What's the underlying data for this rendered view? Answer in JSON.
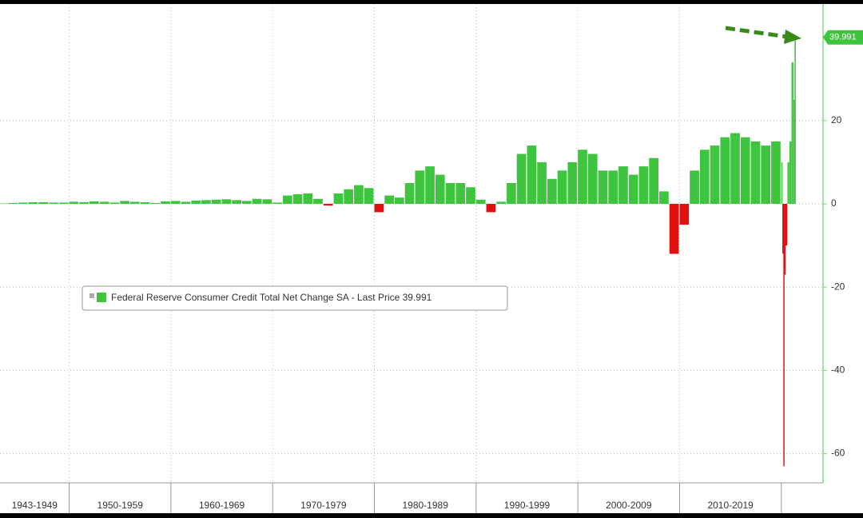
{
  "chart_data": {
    "type": "bar",
    "series_name": "Federal Reserve Consumer Credit Total Net Change SA - Last Price 39.991",
    "x": [
      1943,
      1944,
      1945,
      1946,
      1947,
      1948,
      1949,
      1950,
      1951,
      1952,
      1953,
      1954,
      1955,
      1956,
      1957,
      1958,
      1959,
      1960,
      1961,
      1962,
      1963,
      1964,
      1965,
      1966,
      1967,
      1968,
      1969,
      1970,
      1971,
      1972,
      1973,
      1974,
      1975,
      1976,
      1977,
      1978,
      1979,
      1980,
      1981,
      1982,
      1983,
      1984,
      1985,
      1986,
      1987,
      1988,
      1989,
      1990,
      1991,
      1992,
      1993,
      1994,
      1995,
      1996,
      1997,
      1998,
      1999,
      2000,
      2001,
      2002,
      2003,
      2004,
      2005,
      2006,
      2007,
      2008,
      2009,
      2010,
      2011,
      2012,
      2013,
      2014,
      2015,
      2016,
      2017,
      2018,
      2019,
      2020.0,
      2020.1,
      2020.2,
      2020.3,
      2020.4,
      2020.6,
      2020.8,
      2021.0,
      2021.2,
      2021.3
    ],
    "values": [
      0.1,
      0.2,
      0.3,
      0.4,
      0.4,
      0.3,
      0.3,
      0.5,
      0.4,
      0.6,
      0.5,
      0.3,
      0.7,
      0.5,
      0.4,
      0.2,
      0.6,
      0.7,
      0.5,
      0.8,
      0.9,
      1.0,
      1.1,
      0.9,
      0.7,
      1.2,
      1.1,
      0.3,
      2.0,
      2.3,
      2.5,
      1.2,
      -0.4,
      2.5,
      3.5,
      4.5,
      3.8,
      -2.0,
      2.0,
      1.5,
      5.0,
      8.0,
      9.0,
      7.0,
      5.0,
      5.0,
      4.0,
      1.0,
      -2.0,
      0.5,
      5.0,
      12.0,
      14.0,
      10.0,
      6.0,
      8.0,
      10.0,
      13.0,
      12.0,
      8.0,
      8.0,
      9.0,
      7.0,
      9.0,
      11.0,
      3.0,
      -12.0,
      -5.0,
      8.0,
      13.0,
      14.0,
      16.0,
      17.0,
      16.0,
      15.0,
      14.0,
      15.0,
      10.0,
      -12.0,
      -63.0,
      -17.0,
      -10.0,
      10.0,
      15.0,
      34.0,
      25.0,
      39.991
    ],
    "colors": {
      "positive": "#3ec43e",
      "negative": "#e01010"
    },
    "xlim": [
      1943.2,
      2024.1
    ],
    "ylim": [
      -67,
      48
    ],
    "yticks": [
      20,
      0,
      -20,
      -40,
      -60
    ],
    "x_groups": [
      {
        "label": "1943-1949",
        "start": 1943,
        "end": 1950
      },
      {
        "label": "1950-1959",
        "start": 1950,
        "end": 1960
      },
      {
        "label": "1960-1969",
        "start": 1960,
        "end": 1970
      },
      {
        "label": "1970-1979",
        "start": 1970,
        "end": 1980
      },
      {
        "label": "1980-1989",
        "start": 1980,
        "end": 1990
      },
      {
        "label": "1990-1999",
        "start": 1990,
        "end": 2000
      },
      {
        "label": "2000-2009",
        "start": 2000,
        "end": 2010
      },
      {
        "label": "2010-2019",
        "start": 2010,
        "end": 2020
      }
    ],
    "grid": true
  }
}
